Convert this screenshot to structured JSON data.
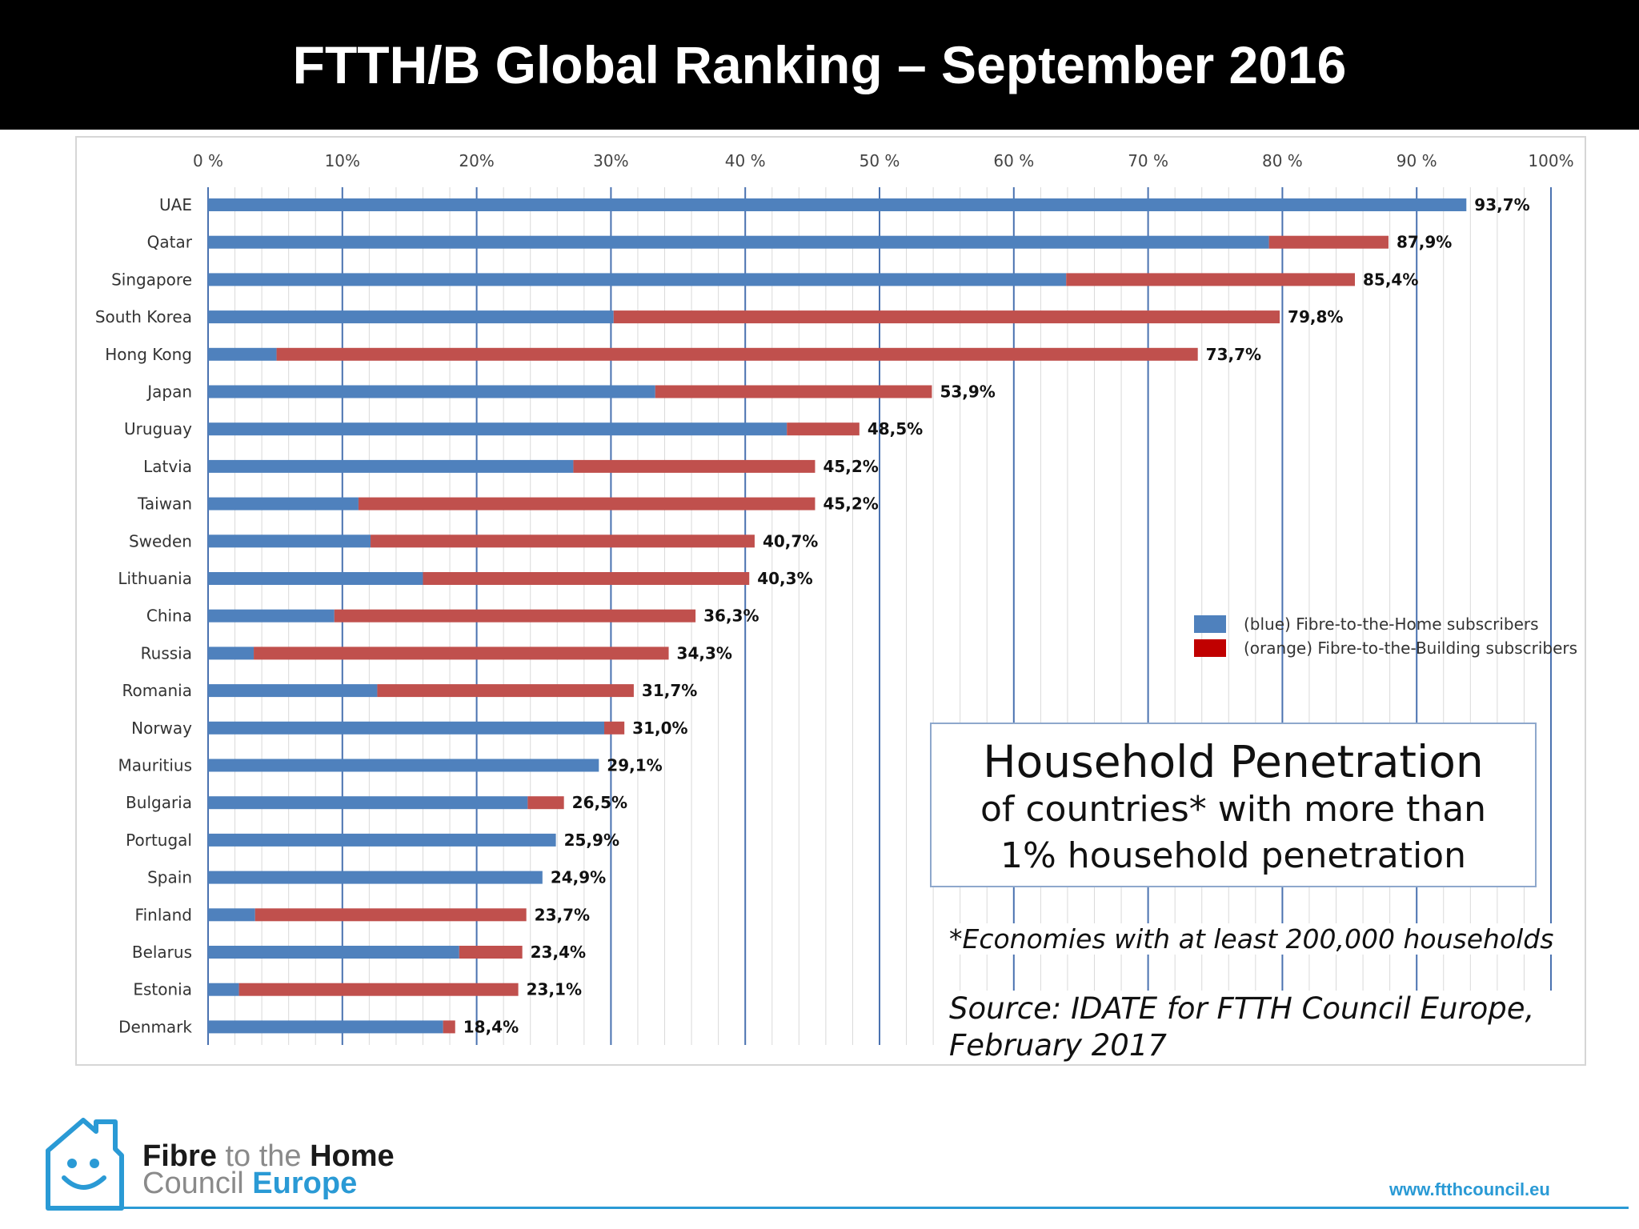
{
  "slide": {
    "title": "FTTH/B Global Ranking – September 2016"
  },
  "colors": {
    "ftth": "#4f81bd",
    "fttb": "#c0504d",
    "legend_fttb_swatch": "#c00000",
    "gridline": "#4a72b0",
    "minor_gridline": "#d9d9d9",
    "brand": "#2a9ad5"
  },
  "chart_data": {
    "type": "bar",
    "orientation": "horizontal",
    "stacked": true,
    "x_axis": {
      "range": [
        0,
        100
      ],
      "tick_labels": [
        "0 %",
        "10%",
        "20%",
        "30%",
        "40 %",
        "50 %",
        "60 %",
        "70 %",
        "80 %",
        "90 %",
        "100%"
      ],
      "position": "top"
    },
    "grid": {
      "major": true,
      "minor": true
    },
    "categories": [
      "UAE",
      "Qatar",
      "Singapore",
      "South Korea",
      "Hong Kong",
      "Japan",
      "Uruguay",
      "Latvia",
      "Taiwan",
      "Sweden",
      "Lithuania",
      "China",
      "Russia",
      "Romania",
      "Norway",
      "Mauritius",
      "Bulgaria",
      "Portugal",
      "Spain",
      "Finland",
      "Belarus",
      "Estonia",
      "Denmark"
    ],
    "series": [
      {
        "name": "(blue) Fibre-to-the-Home subscribers",
        "color": "#4f81bd",
        "values": [
          93.7,
          79.0,
          63.9,
          30.2,
          5.1,
          33.3,
          43.1,
          27.2,
          11.2,
          12.1,
          16.0,
          9.4,
          3.4,
          12.6,
          29.5,
          29.1,
          23.8,
          25.9,
          24.9,
          3.5,
          18.7,
          2.3,
          17.5
        ]
      },
      {
        "name": "(orange) Fibre-to-the-Building subscribers",
        "color": "#c0504d",
        "values": [
          0,
          8.9,
          21.5,
          49.6,
          68.6,
          20.6,
          5.4,
          18.0,
          34.0,
          28.6,
          24.3,
          26.9,
          30.9,
          19.1,
          1.5,
          0,
          2.7,
          0,
          0,
          20.2,
          4.7,
          20.8,
          0.9
        ]
      }
    ],
    "totals": [
      93.7,
      87.9,
      85.4,
      79.8,
      73.7,
      53.9,
      48.5,
      45.2,
      45.2,
      40.7,
      40.3,
      36.3,
      34.3,
      31.7,
      31.0,
      29.1,
      26.5,
      25.9,
      24.9,
      23.7,
      23.4,
      23.1,
      18.4
    ],
    "total_labels": [
      "93,7%",
      "87,9%",
      "85,4%",
      "79,8%",
      "73,7%",
      "53,9%",
      "48,5%",
      "45,2%",
      "45,2%",
      "40,7%",
      "40,3%",
      "36,3%",
      "34,3%",
      "31,7%",
      "31,0%",
      "29,1%",
      "26,5%",
      "25,9%",
      "24,9%",
      "23,7%",
      "23,4%",
      "23,1%",
      "18,4%"
    ],
    "legend_position": "right"
  },
  "legend": {
    "ftth_label": "(blue) Fibre-to-the-Home subscribers",
    "fttb_label": "(orange) Fibre-to-the-Building subscribers"
  },
  "info_box": {
    "title": "Household Penetration",
    "line1": "of countries* with more than",
    "line2": "1% household penetration"
  },
  "footnote": "*Economies with at least 200,000 households",
  "source": "Source: IDATE for FTTH Council Europe, February 2017",
  "logo": {
    "word_fibre": "Fibre",
    "word_tothe": " to the ",
    "word_home": "Home",
    "word_council": "Council ",
    "word_europe": "Europe",
    "icon": "house-smiley-icon"
  },
  "website": "www.ftthcouncil.eu"
}
